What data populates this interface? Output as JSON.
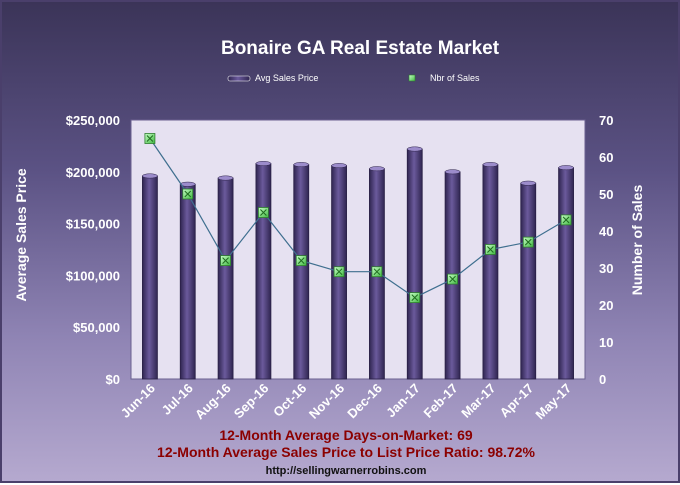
{
  "chart_data": {
    "type": "bar",
    "title": "Bonaire GA Real Estate Market",
    "categories": [
      "Jun-16",
      "Jul-16",
      "Aug-16",
      "Sep-16",
      "Oct-16",
      "Nov-16",
      "Dec-16",
      "Jan-17",
      "Feb-17",
      "Mar-17",
      "Apr-17",
      "May-17"
    ],
    "series": [
      {
        "name": "Avg Sales Price",
        "type": "bar",
        "axis": "left",
        "values": [
          196000,
          188000,
          194000,
          208000,
          207000,
          206000,
          203000,
          222000,
          200000,
          207000,
          189000,
          204000
        ]
      },
      {
        "name": "Nbr of Sales",
        "type": "line",
        "axis": "right",
        "values": [
          65,
          50,
          32,
          45,
          32,
          29,
          29,
          22,
          27,
          35,
          37,
          43
        ]
      }
    ],
    "ylabel_left": "Average Sales Price",
    "ylabel_right": "Number of Sales",
    "ylim_left": [
      0,
      250000
    ],
    "ylim_right": [
      0,
      70
    ],
    "yticks_left": [
      "$0",
      "$50,000",
      "$100,000",
      "$150,000",
      "$200,000",
      "$250,000"
    ],
    "yticks_right": [
      "0",
      "10",
      "20",
      "30",
      "40",
      "50",
      "60",
      "70"
    ],
    "grid": false,
    "legend_position": "top"
  },
  "footer": {
    "line1": "12-Month Average Days-on-Market: 69",
    "line2": "12-Month Average Sales Price to List Price Ratio: 98.72%",
    "url": "http://sellingwarnerrobins.com"
  },
  "colors": {
    "bar": "#4e3d7a",
    "plot_bg": "#e6e1f1",
    "line": "#3f6f8f",
    "marker": "#7fe87f",
    "footer_text": "#8b0000"
  }
}
